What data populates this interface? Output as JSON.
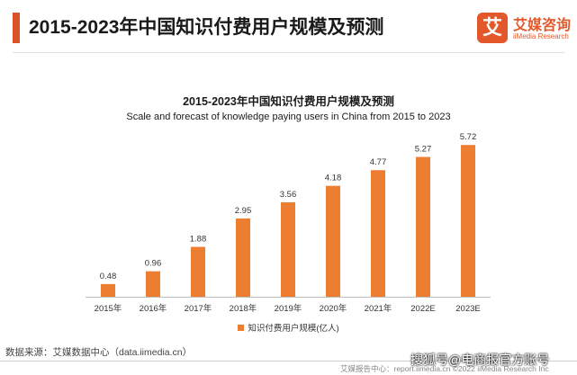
{
  "header": {
    "title": "2015-2023年中国知识付费用户规模及预测",
    "accent_color": "#d9532a"
  },
  "logo": {
    "mark": "艾",
    "name_cn": "艾媒咨询",
    "name_en": "iiMedia Research",
    "color": "#e2582a"
  },
  "chart_data": {
    "type": "bar",
    "title": "2015-2023年中国知识付费用户规模及预测",
    "subtitle": "Scale and forecast of knowledge paying users in China from 2015 to 2023",
    "categories": [
      "2015年",
      "2016年",
      "2017年",
      "2018年",
      "2019年",
      "2020年",
      "2021年",
      "2022E",
      "2023E"
    ],
    "series": [
      {
        "name": "知识付费用户规模(亿人)",
        "values": [
          0.48,
          0.96,
          1.88,
          2.95,
          3.56,
          4.18,
          4.77,
          5.27,
          5.72
        ]
      }
    ],
    "value_labels": [
      "0.48",
      "0.96",
      "1.88",
      "2.95",
      "3.56",
      "4.18",
      "4.77",
      "5.27",
      "5.72"
    ],
    "ylim": [
      0,
      6.1
    ],
    "grid": false,
    "legend_position": "bottom",
    "bar_color": "#ed7d31"
  },
  "source_text": "数据来源：艾媒数据中心（data.iimedia.cn）",
  "footer_text": "艾媒报告中心：report.iimedia.cn ©2022 iiMedia Research Inc",
  "watermark_text": "搜狐号@电商报官方账号"
}
